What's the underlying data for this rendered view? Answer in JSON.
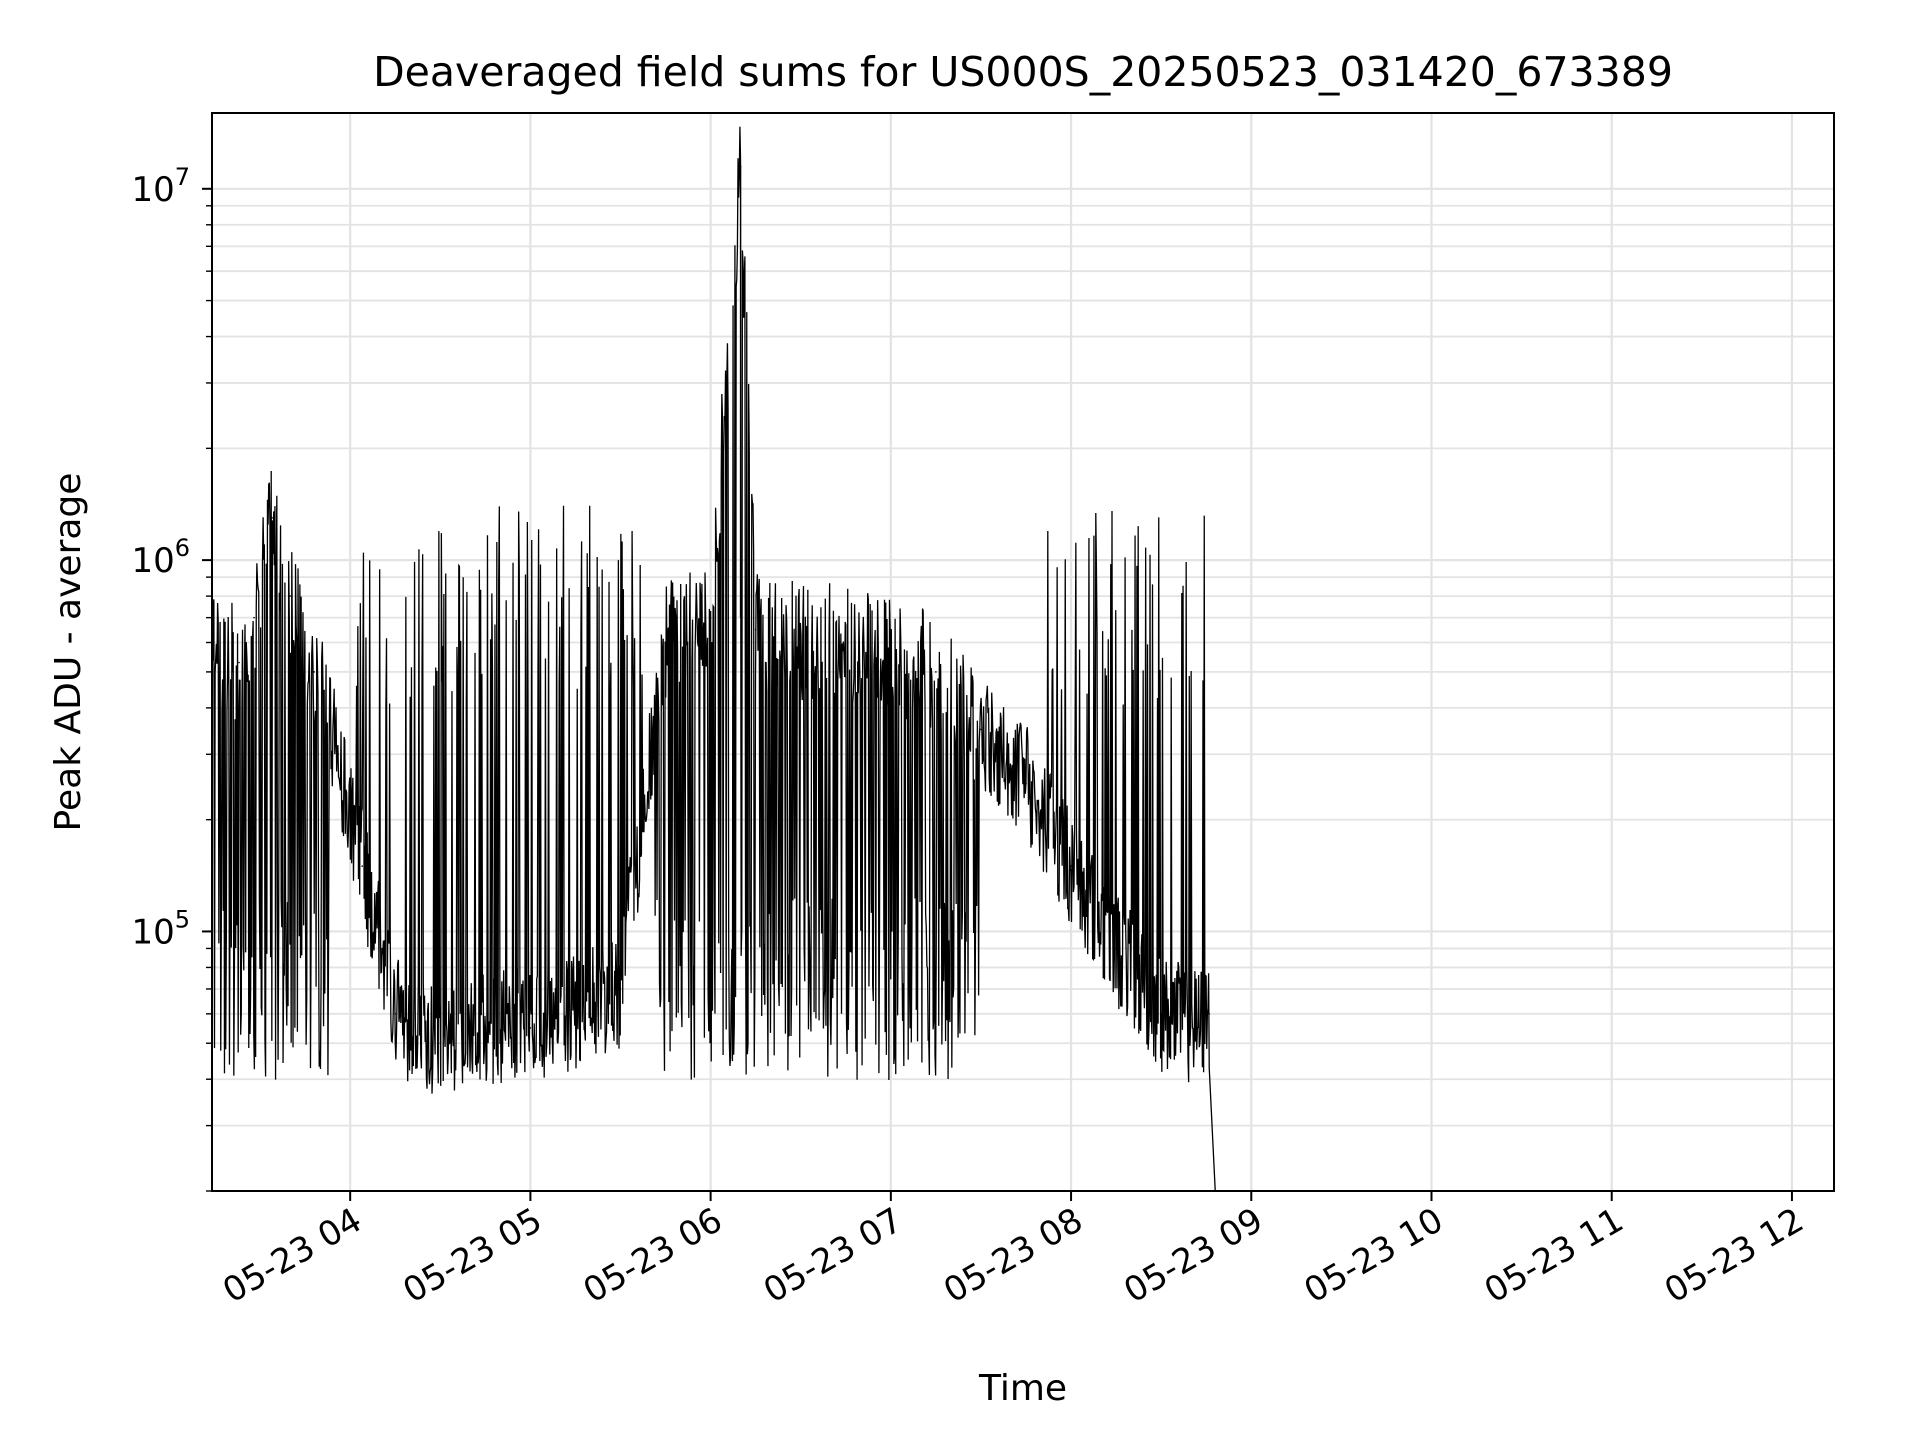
{
  "chart_data": {
    "type": "line",
    "title": "Deaveraged field sums for US000S_20250523_031420_673389",
    "xlabel": "Time",
    "ylabel": "Peak ADU - average",
    "yscale": "log",
    "ylim": [
      20000,
      16000000
    ],
    "xlim": [
      "2025-05-23 03:14",
      "2025-05-23 12:14"
    ],
    "grid": true,
    "y_ticks": [
      {
        "value": 100000,
        "base": "10",
        "exp": "5"
      },
      {
        "value": 1000000,
        "base": "10",
        "exp": "6"
      },
      {
        "value": 10000000,
        "base": "10",
        "exp": "7"
      }
    ],
    "x_ticks": [
      {
        "value": "2025-05-23 04:00",
        "label": "05-23 04"
      },
      {
        "value": "2025-05-23 05:00",
        "label": "05-23 05"
      },
      {
        "value": "2025-05-23 06:00",
        "label": "05-23 06"
      },
      {
        "value": "2025-05-23 07:00",
        "label": "05-23 07"
      },
      {
        "value": "2025-05-23 08:00",
        "label": "05-23 08"
      },
      {
        "value": "2025-05-23 09:00",
        "label": "05-23 09"
      },
      {
        "value": "2025-05-23 10:00",
        "label": "05-23 10"
      },
      {
        "value": "2025-05-23 11:00",
        "label": "05-23 11"
      },
      {
        "value": "2025-05-23 12:00",
        "label": "05-23 12"
      }
    ],
    "series": [
      {
        "color": "#000000",
        "x": [
          "2025-05-23 03:14",
          "2025-05-23 03:23",
          "2025-05-23 03:28",
          "2025-05-23 03:34",
          "2025-05-23 03:40",
          "2025-05-23 03:48",
          "2025-05-23 03:56",
          "2025-05-23 04:04",
          "2025-05-23 04:15",
          "2025-05-23 04:30",
          "2025-05-23 04:45",
          "2025-05-23 05:00",
          "2025-05-23 05:15",
          "2025-05-23 05:30",
          "2025-05-23 05:45",
          "2025-05-23 06:00",
          "2025-05-23 06:10",
          "2025-05-23 06:15",
          "2025-05-23 06:30",
          "2025-05-23 06:45",
          "2025-05-23 07:00",
          "2025-05-23 07:15",
          "2025-05-23 07:30",
          "2025-05-23 07:45",
          "2025-05-23 08:00",
          "2025-05-23 08:15",
          "2025-05-23 08:30",
          "2025-05-23 08:42",
          "2025-05-23 08:46",
          "2025-05-23 08:48"
        ],
        "y": [
          550000,
          530000,
          700000,
          1300000,
          800000,
          500000,
          300000,
          150000,
          60000,
          50000,
          55000,
          55000,
          60000,
          70000,
          600000,
          700000,
          11500000,
          650000,
          600000,
          600000,
          550000,
          500000,
          350000,
          250000,
          150000,
          90000,
          60000,
          55000,
          60000,
          20000
        ]
      }
    ]
  }
}
